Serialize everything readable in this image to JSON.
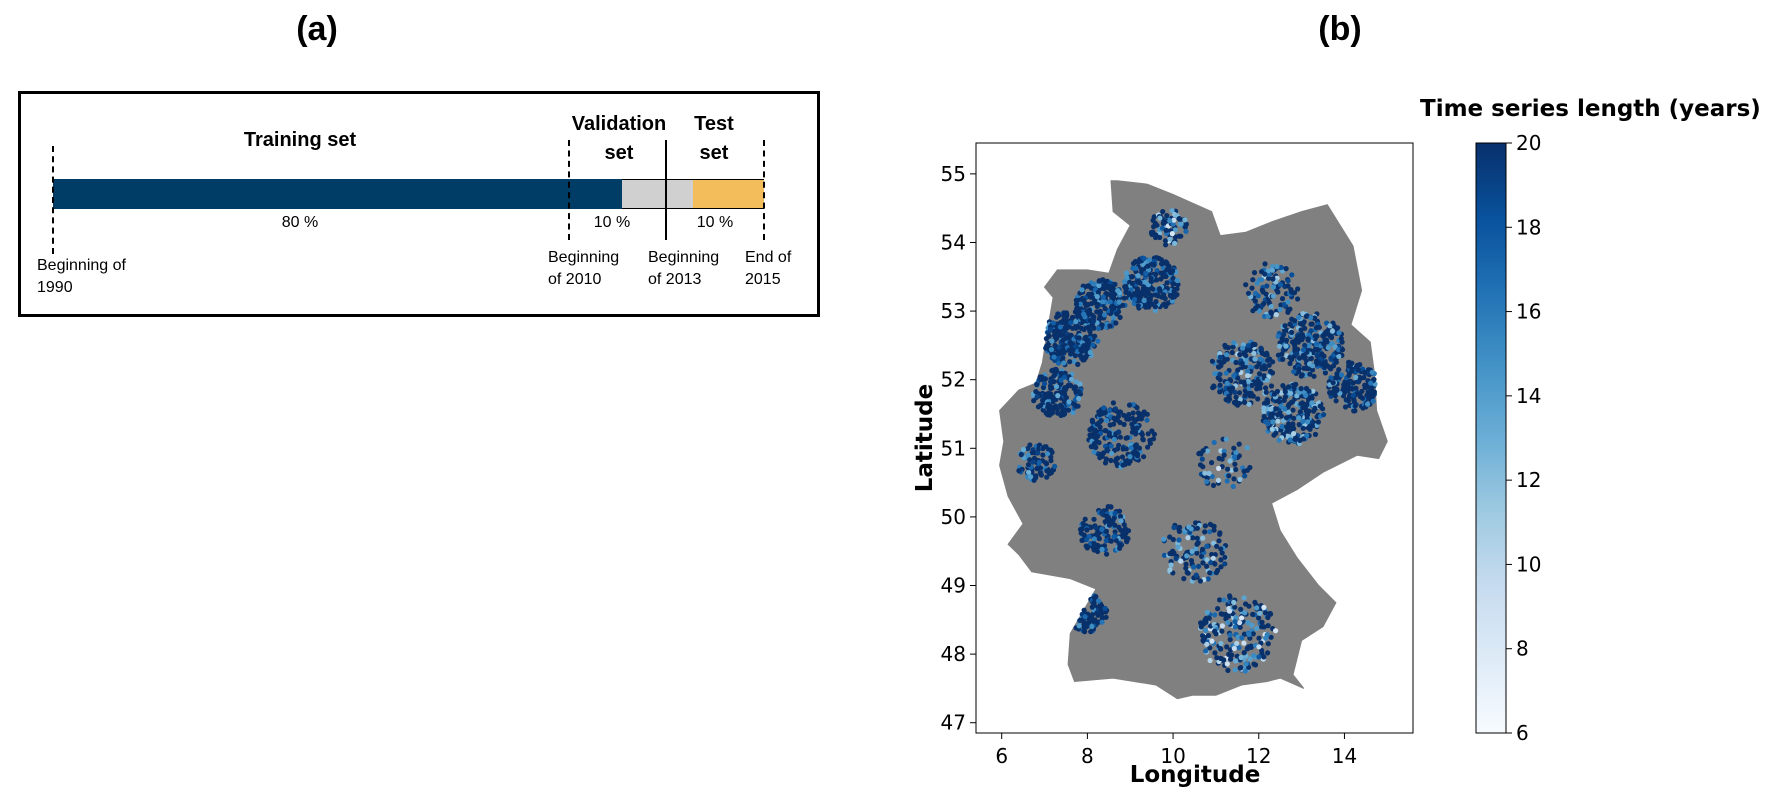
{
  "panels": {
    "a_label": "(a)",
    "b_label": "(b)"
  },
  "timeline": {
    "segments": [
      {
        "name": "Training set",
        "percent": "80 %",
        "fraction": 0.8,
        "color": "#003d66"
      },
      {
        "name": "Validation set",
        "percent": "10 %",
        "fraction": 0.1,
        "color": "#d0d0d0"
      },
      {
        "name": "Test set",
        "percent": "10 %",
        "fraction": 0.1,
        "color": "#f4bd5b"
      }
    ],
    "training_title": "Training set",
    "validation_title_1": "Validation",
    "validation_title_2": "set",
    "test_title_1": "Test",
    "test_title_2": "set",
    "boundaries": [
      {
        "line1": "Beginning of",
        "line2": "1990"
      },
      {
        "line1": "Beginning",
        "line2": "of 2010"
      },
      {
        "line1": "Beginning",
        "line2": "of 2013"
      },
      {
        "line1": "End of",
        "line2": "2015"
      }
    ]
  },
  "chart_data": {
    "type": "scatter",
    "title": "",
    "xlabel": "Longitude",
    "ylabel": "Latitude",
    "xlim": [
      5.4,
      15.6
    ],
    "ylim": [
      46.85,
      55.45
    ],
    "xticks": [
      6,
      8,
      10,
      12,
      14
    ],
    "yticks": [
      47,
      48,
      49,
      50,
      51,
      52,
      53,
      54,
      55
    ],
    "basemap": "Germany",
    "basemap_color": "#808080",
    "colorbar": {
      "title": "Time series length (years)",
      "min": 6,
      "max": 20,
      "ticks": [
        6,
        8,
        10,
        12,
        14,
        16,
        18,
        20
      ],
      "colormap": "Blues",
      "color_low": "#f7fbff",
      "color_high": "#08306b"
    },
    "points_note": "several thousand monitoring wells; values 6-20 years, most near 20"
  }
}
